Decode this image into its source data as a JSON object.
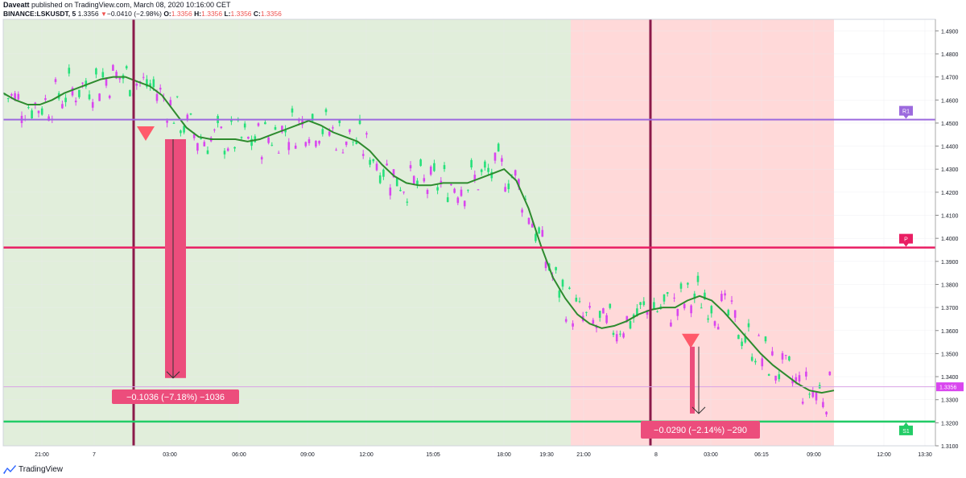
{
  "header": {
    "author": "Daveatt",
    "published": "published on TradingView.com, March 08, 2020 10:16:00 CET",
    "symbol": "BINANCE:LSKUSDT, 5",
    "price": "1.3356",
    "change": "−0.0410 (−2.98%)",
    "o_label": "O:",
    "o_value": "1.3356",
    "h_label": "H:",
    "h_value": "1.3356",
    "l_label": "L:",
    "l_value": "1.3356",
    "c_label": "C:",
    "c_value": "1.3356"
  },
  "footer": {
    "brand": "TradingView"
  },
  "colors": {
    "bull": "#26e07a",
    "bear": "#d946ef",
    "ma": "#2e8b2e",
    "pivot": "#e91e63",
    "r1": "#9c6ade",
    "s1": "#22cc66",
    "zone_green": "#e1eedb",
    "zone_red": "#ffd9d9",
    "vline": "#8b1a4a",
    "callout": "#ec4d7c",
    "arrow": "#ff5a6a"
  },
  "chart_data": {
    "type": "candlestick",
    "ylim": [
      1.31,
      1.495
    ],
    "yticks": [
      "1.4900",
      "1.4800",
      "1.4700",
      "1.4600",
      "1.4500",
      "1.4400",
      "1.4300",
      "1.4200",
      "1.4100",
      "1.4000",
      "1.3900",
      "1.3800",
      "1.3700",
      "1.3600",
      "1.3500",
      "1.3400",
      "1.3300",
      "1.3200",
      "1.3100"
    ],
    "xticks": [
      "21:00",
      "7",
      "03:00",
      "06:00",
      "09:00",
      "12:00",
      "15:05",
      "18:00",
      "19:30",
      "21:00",
      "8",
      "03:00",
      "06:15",
      "09:00",
      "12:00",
      "13:30"
    ],
    "levels": [
      {
        "label": "R1",
        "value": 1.4515
      },
      {
        "label": "P",
        "value": 1.396
      },
      {
        "label": "S1",
        "value": 1.3205
      }
    ],
    "current_price": {
      "label": "1.3356",
      "value": 1.3356
    },
    "zones": [
      {
        "from": "20:45",
        "to": "20:45 +2d",
        "color": "green"
      },
      {
        "color": "red"
      }
    ],
    "events": [
      {
        "label": "−0.1036 (−7.18%) −1036",
        "entry": 1.443,
        "exit": 1.3394
      },
      {
        "label": "−0.0290 (−2.14%) −290",
        "entry": 1.353,
        "exit": 1.324
      }
    ],
    "ma": [
      1.463,
      1.46,
      1.458,
      1.458,
      1.46,
      1.463,
      1.465,
      1.467,
      1.469,
      1.47,
      1.47,
      1.468,
      1.466,
      1.462,
      1.455,
      1.448,
      1.444,
      1.443,
      1.443,
      1.443,
      1.442,
      1.443,
      1.445,
      1.447,
      1.449,
      1.451,
      1.449,
      1.446,
      1.444,
      1.442,
      1.438,
      1.432,
      1.427,
      1.424,
      1.423,
      1.423,
      1.424,
      1.424,
      1.424,
      1.426,
      1.428,
      1.43,
      1.425,
      1.413,
      1.397,
      1.383,
      1.374,
      1.367,
      1.363,
      1.361,
      1.362,
      1.364,
      1.367,
      1.369,
      1.37,
      1.37,
      1.373,
      1.375,
      1.373,
      1.368,
      1.362,
      1.356,
      1.35,
      1.345,
      1.341,
      1.337,
      1.334,
      1.333,
      1.334
    ]
  }
}
